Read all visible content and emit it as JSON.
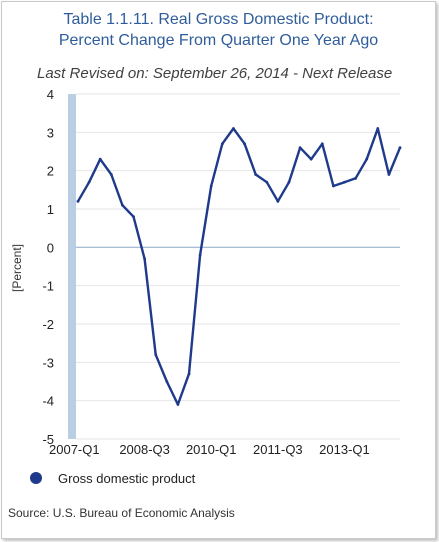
{
  "header": {
    "title_line1": "Table 1.1.11. Real Gross Domestic Product:",
    "title_line2": "Percent Change From Quarter One Year Ago",
    "revised": "Last Revised on: September 26, 2014 - Next Release"
  },
  "footer": {
    "source": "Source: U.S. Bureau of Economic  Analysis"
  },
  "colors": {
    "series": "#1f3a8a",
    "title": "#2f5d9b",
    "band": "#b9cde3",
    "zero_line": "#9fb6d1"
  },
  "chart_data": {
    "type": "line",
    "title": "",
    "xlabel": "",
    "ylabel": "[Percent]",
    "ylim": [
      -5,
      4
    ],
    "yticks": [
      4,
      3,
      2,
      1,
      0,
      -1,
      -2,
      -3,
      -4,
      -5
    ],
    "grid": true,
    "legend_position": "bottom-left",
    "x": [
      "2007-Q1",
      "2007-Q2",
      "2007-Q3",
      "2007-Q4",
      "2008-Q1",
      "2008-Q2",
      "2008-Q3",
      "2008-Q4",
      "2009-Q1",
      "2009-Q2",
      "2009-Q3",
      "2009-Q4",
      "2010-Q1",
      "2010-Q2",
      "2010-Q3",
      "2010-Q4",
      "2011-Q1",
      "2011-Q2",
      "2011-Q3",
      "2011-Q4",
      "2012-Q1",
      "2012-Q2",
      "2012-Q3",
      "2012-Q4",
      "2013-Q1",
      "2013-Q2",
      "2013-Q3",
      "2013-Q4",
      "2014-Q1",
      "2014-Q2"
    ],
    "xtick_labels": [
      "2007-Q1",
      "2008-Q3",
      "2010-Q1",
      "2011-Q3",
      "2013-Q1"
    ],
    "series": [
      {
        "name": "Gross domestic product",
        "values": [
          1.2,
          1.7,
          2.3,
          1.9,
          1.1,
          0.8,
          -0.3,
          -2.8,
          -3.5,
          -4.1,
          -3.3,
          -0.2,
          1.6,
          2.7,
          3.1,
          2.7,
          1.9,
          1.7,
          1.2,
          1.7,
          2.6,
          2.3,
          2.7,
          1.6,
          1.7,
          1.8,
          2.3,
          3.1,
          1.9,
          2.6
        ]
      }
    ]
  }
}
